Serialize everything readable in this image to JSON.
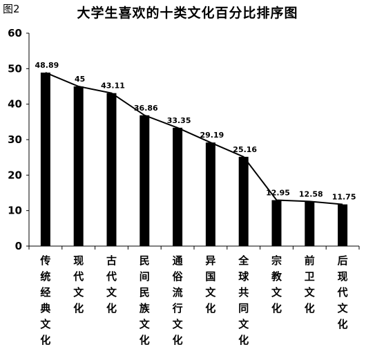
{
  "figure_label": "图2",
  "chart_data": {
    "type": "bar",
    "title": "大学生喜欢的十类文化百分比排序图",
    "categories": [
      "传统经典文化",
      "现代文化",
      "古代文化",
      "民间民族文化",
      "通俗流行文化",
      "异国文化",
      "全球共同文化",
      "宗教文化",
      "前卫文化",
      "后现代文化"
    ],
    "values": [
      48.89,
      45,
      43.11,
      36.86,
      33.35,
      29.19,
      25.16,
      12.95,
      12.58,
      11.75
    ],
    "data_labels": [
      "48.89",
      "45",
      "43.11",
      "36.86",
      "33.35",
      "29.19",
      "25.16",
      "12.95",
      "12.58",
      "11.75"
    ],
    "overlay_line": true,
    "ylim": [
      0,
      60
    ],
    "yticks": [
      0,
      10,
      20,
      30,
      40,
      50,
      60
    ],
    "xlabel": "",
    "ylabel": "",
    "grid": false,
    "bar_color": "#000000",
    "line_color": "#000000"
  }
}
